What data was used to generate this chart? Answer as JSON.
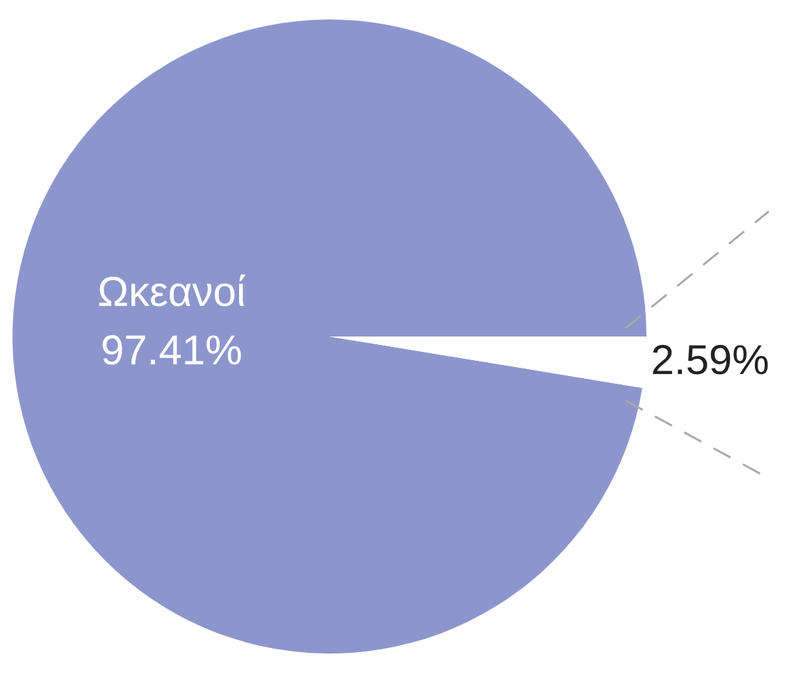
{
  "chart_data": {
    "type": "pie",
    "categories": [
      "Ωκεανοί",
      null
    ],
    "values": [
      97.41,
      2.59
    ],
    "colors": [
      "#8d96cc",
      "#ffffff"
    ],
    "value_labels": [
      "97.41%",
      "2.59%"
    ],
    "legend": false
  }
}
